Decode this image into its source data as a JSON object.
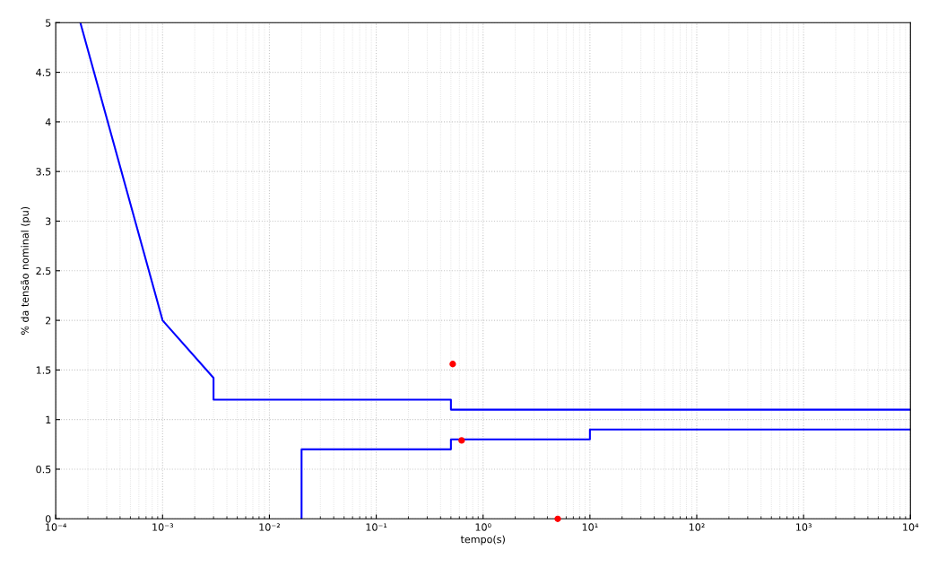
{
  "chart_data": {
    "type": "line",
    "xlabel": "tempo(s)",
    "ylabel": "% da tensão nominal (pu)",
    "log": "x",
    "grid": true,
    "legend": false,
    "marker": "none",
    "line_style": "solid",
    "xlim": [
      0.0001,
      10000
    ],
    "xticks": [
      {
        "value": 0.0001,
        "label": "10⁻⁴"
      },
      {
        "value": 0.001,
        "label": "10⁻³"
      },
      {
        "value": 0.01,
        "label": "10⁻²"
      },
      {
        "value": 0.1,
        "label": "10⁻¹"
      },
      {
        "value": 1,
        "label": "10⁰"
      },
      {
        "value": 10,
        "label": "10¹"
      },
      {
        "value": 100,
        "label": "10²"
      },
      {
        "value": 1000,
        "label": "10³"
      },
      {
        "value": 10000,
        "label": "10⁴"
      }
    ],
    "ylim": [
      0,
      5
    ],
    "yticks": [
      0,
      0.5,
      1,
      1.5,
      2,
      2.5,
      3,
      3.5,
      4,
      4.5,
      5
    ],
    "series": [
      {
        "color": "#0000ff",
        "x": [
          0.00017,
          0.001,
          0.003,
          0.003,
          0.5,
          0.5,
          10000
        ],
        "values": [
          5,
          2,
          1.42,
          1.2,
          1.2,
          1.1,
          1.1
        ]
      },
      {
        "color": "#0000ff",
        "x": [
          0.02,
          0.02,
          0.5,
          0.5,
          10,
          10,
          10000
        ],
        "values": [
          0,
          0.7,
          0.7,
          0.8,
          0.8,
          0.9,
          0.9
        ]
      },
      {
        "type": "scatter",
        "color": "#ff0000",
        "marker": "circle",
        "x": [
          0.52,
          0.63,
          5
        ],
        "values": [
          1.56,
          0.79,
          0
        ]
      }
    ]
  }
}
